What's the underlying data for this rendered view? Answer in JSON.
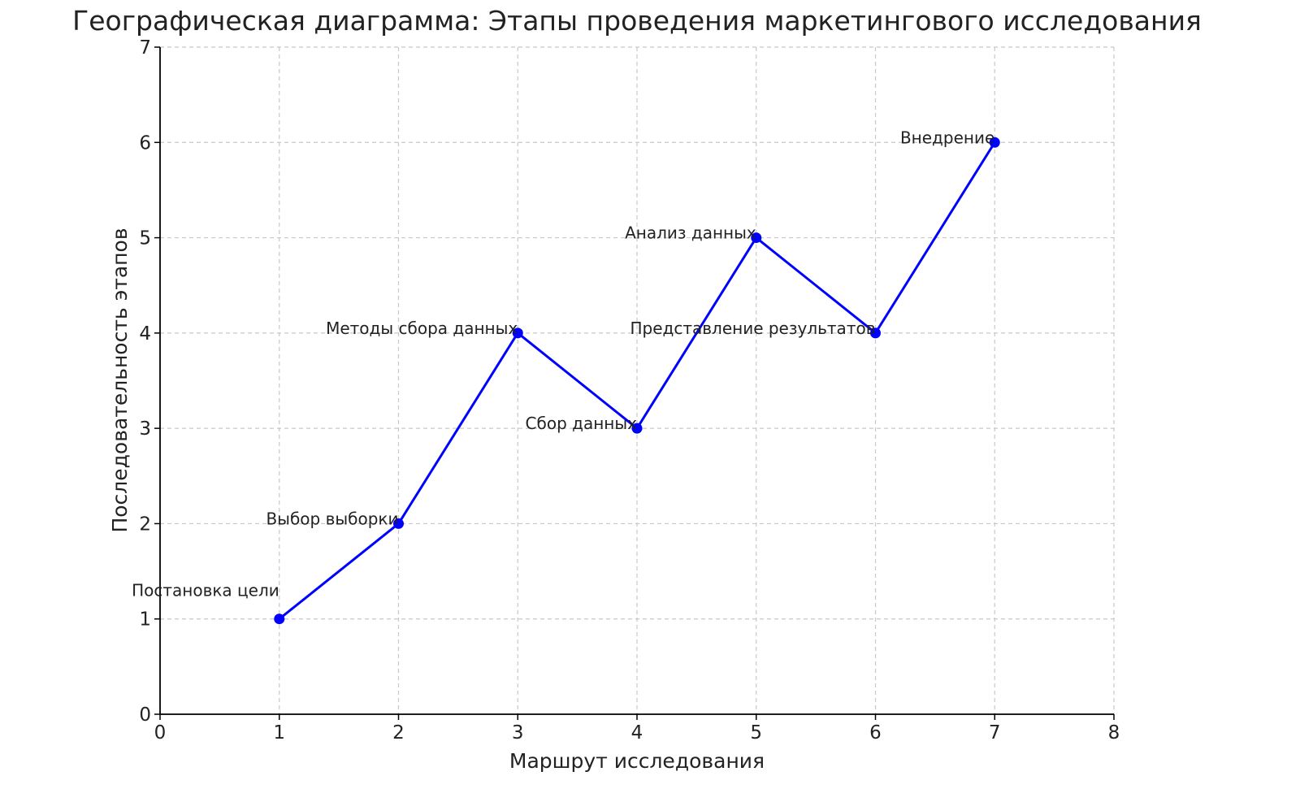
{
  "chart_data": {
    "type": "line",
    "title": "Географическая диаграмма: Этапы проведения маркетингового исследования",
    "xlabel": "Маршрут исследования",
    "ylabel": "Последовательность этапов",
    "xlim": [
      0,
      8
    ],
    "ylim": [
      0,
      7
    ],
    "xticks": [
      "0",
      "1",
      "2",
      "3",
      "4",
      "5",
      "6",
      "7",
      "8"
    ],
    "yticks": [
      "0",
      "1",
      "2",
      "3",
      "4",
      "5",
      "6",
      "7"
    ],
    "grid": true,
    "color": "#0000ff",
    "marker": "circle",
    "points": [
      {
        "x": 1,
        "y": 1,
        "label": "Постановка цели"
      },
      {
        "x": 2,
        "y": 2,
        "label": "Выбор выборки"
      },
      {
        "x": 3,
        "y": 4,
        "label": "Методы сбора данных"
      },
      {
        "x": 4,
        "y": 3,
        "label": "Сбор данных"
      },
      {
        "x": 5,
        "y": 5,
        "label": "Анализ данных"
      },
      {
        "x": 6,
        "y": 4,
        "label": "Представление результатов"
      },
      {
        "x": 7,
        "y": 6,
        "label": "Внедрение"
      }
    ]
  }
}
